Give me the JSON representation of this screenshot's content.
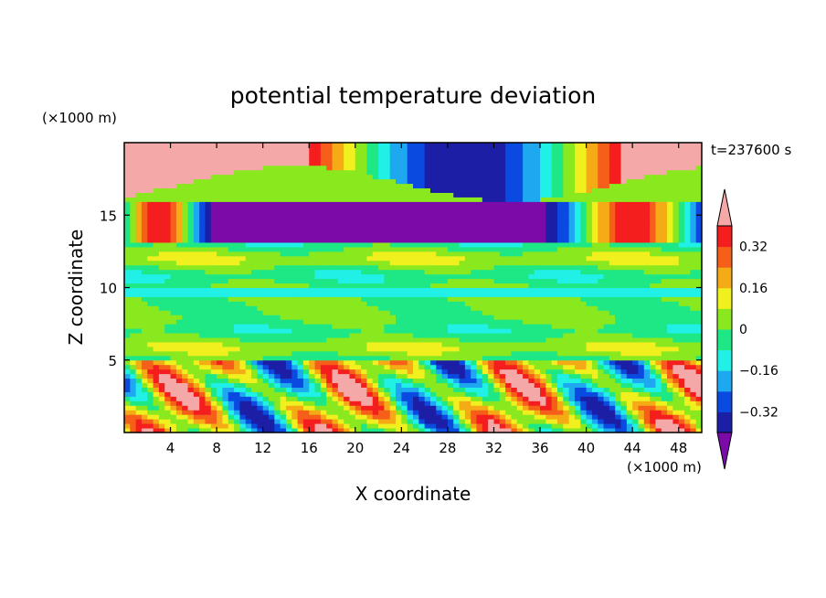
{
  "chart_data": {
    "type": "heatmap",
    "title": "potential temperature deviation",
    "xlabel": "X coordinate",
    "ylabel": "Z coordinate",
    "x_unit": "(×1000 m)",
    "y_unit": "(×1000 m)",
    "time_label": "t=237600 s",
    "xlim": [
      0,
      50
    ],
    "ylim": [
      0,
      20
    ],
    "x_ticks": [
      4,
      8,
      12,
      16,
      20,
      24,
      28,
      32,
      36,
      40,
      44,
      48
    ],
    "y_ticks": [
      5,
      10,
      15
    ],
    "colorbar": {
      "levels": [
        -0.4,
        -0.32,
        -0.24,
        -0.16,
        -0.08,
        0,
        0.08,
        0.16,
        0.24,
        0.32,
        0.4
      ],
      "colors": [
        "#7b0aa8",
        "#1c1fa6",
        "#0a4ae0",
        "#1ea8f0",
        "#21f0e6",
        "#1ee886",
        "#8ae81e",
        "#f0f01e",
        "#f5ab16",
        "#f55f19",
        "#f51e1e",
        "#f5a8a8"
      ],
      "labels": [
        "0.32",
        "0.16",
        "0",
        "-0.16",
        "-0.32"
      ],
      "label_values": [
        0.32,
        0.16,
        0,
        -0.16,
        -0.32
      ],
      "label_text": [
        "0.32",
        "0.16",
        "0",
        "−0.16",
        "−0.32"
      ],
      "extend": "both"
    },
    "field_description_rows": [
      {
        "z_range": [
          16,
          20
        ],
        "dominant": "pink (>0.4) and purple (<-0.4) layers"
      },
      {
        "z_range": [
          12,
          16
        ],
        "dominant": "purple band near x 8-36, pink near x 0-8 and 36-50"
      },
      {
        "z_range": [
          5,
          12
        ],
        "dominant": "green to light green near 0"
      },
      {
        "z_range": [
          0,
          5
        ],
        "dominant": "mixed convective cells"
      }
    ]
  }
}
